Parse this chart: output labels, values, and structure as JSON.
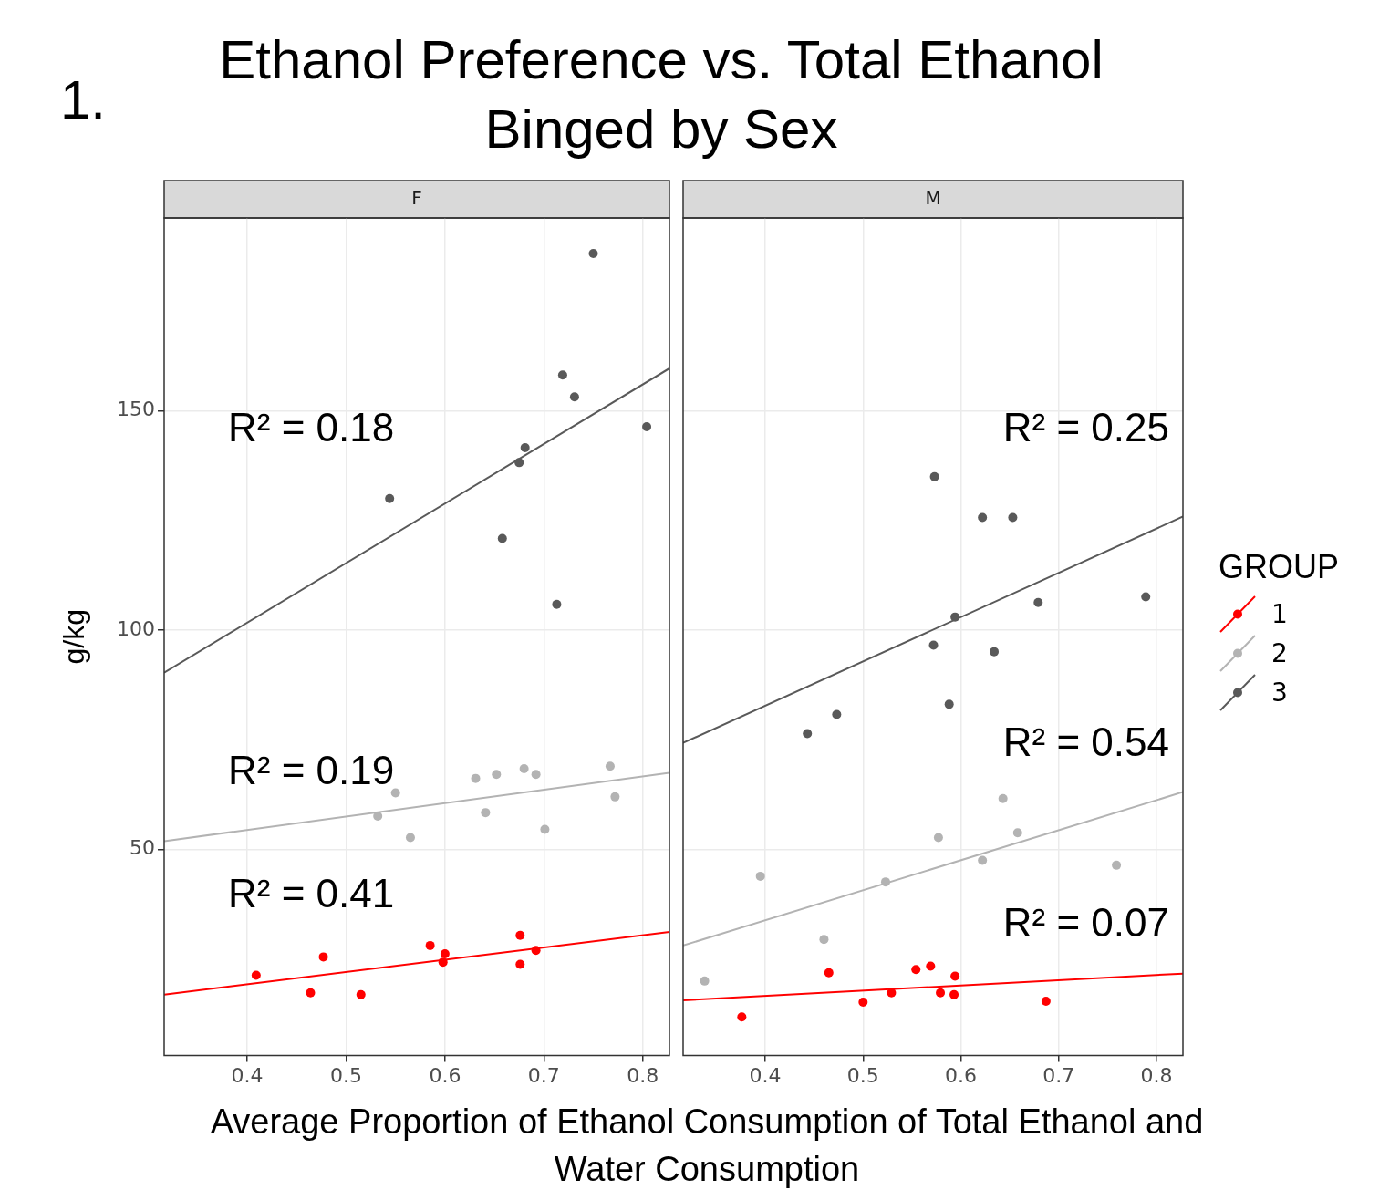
{
  "chart_data": [
    {
      "type": "scatter",
      "title": "Ethanol Preference vs. Total Ethanol Binged by Sex",
      "subtitle": "F",
      "xlabel": "Average Proportion of Ethanol Consumption of Total Ethanol and Water Consumption",
      "ylabel": "g/kg",
      "xlim": [
        0.316,
        0.827
      ],
      "xticks": [
        0.4,
        0.5,
        0.6,
        0.7,
        0.8
      ],
      "ylim": [
        3,
        194
      ],
      "yticks": [
        50,
        100,
        150
      ],
      "grid": true,
      "marker": "circle",
      "annotations": [
        "1.",
        "R² = 0.18",
        "R² = 0.19",
        "R² = 0.41"
      ],
      "series": [
        {
          "color": "#ff0000",
          "x": [
            0.409,
            0.464,
            0.477,
            0.515,
            0.585,
            0.6,
            0.598,
            0.676,
            0.676,
            0.692
          ],
          "values": [
            21.3,
            17.3,
            25.5,
            16.9,
            28.1,
            26.2,
            24.3,
            30.4,
            23.8,
            27
          ]
        },
        {
          "color": "#b3b3b3",
          "x": [
            0.55,
            0.532,
            0.565,
            0.631,
            0.652,
            0.641,
            0.68,
            0.692,
            0.701,
            0.767,
            0.772
          ],
          "values": [
            62.9,
            57.6,
            52.7,
            66.2,
            67.1,
            58.4,
            68.4,
            67.1,
            54.6,
            69,
            62
          ]
        },
        {
          "color": "#595959",
          "x": [
            0.75,
            0.719,
            0.731,
            0.804,
            0.681,
            0.675,
            0.544,
            0.658,
            0.713
          ],
          "values": [
            185.9,
            158.2,
            153.2,
            146.4,
            141.6,
            138.2,
            130,
            120.9,
            105.9
          ]
        },
        {
          "type": "line",
          "marker": "none",
          "color": "#ff0000",
          "x": [
            0.316,
            0.827
          ],
          "values": [
            16.9,
            31.2
          ]
        },
        {
          "type": "line",
          "marker": "none",
          "color": "#b3b3b3",
          "x": [
            0.316,
            0.827
          ],
          "values": [
            51.9,
            67.5
          ]
        },
        {
          "type": "line",
          "marker": "none",
          "color": "#595959",
          "x": [
            0.316,
            0.827
          ],
          "values": [
            90.3,
            159.7
          ]
        }
      ]
    },
    {
      "type": "scatter",
      "subtitle": "M",
      "xlim": [
        0.316,
        0.827
      ],
      "xticks": [
        0.4,
        0.5,
        0.6,
        0.7,
        0.8
      ],
      "ylim": [
        3,
        194
      ],
      "yticks": [
        50,
        100,
        150
      ],
      "tick_labels": "x",
      "grid": true,
      "marker": "circle",
      "legend": "right",
      "legend_title": "GROUP",
      "annotations": [
        "R² = 0.25",
        "R² = 0.54",
        "R² = 0.07"
      ],
      "series": [
        {
          "name": "1",
          "color": "#ff0000",
          "x": [
            0.376,
            0.465,
            0.5,
            0.529,
            0.554,
            0.569,
            0.579,
            0.593,
            0.594,
            0.687
          ],
          "values": [
            11.8,
            21.9,
            15.2,
            17.3,
            22.6,
            23.4,
            17.3,
            16.9,
            21.1,
            15.4
          ]
        },
        {
          "name": "2",
          "color": "#b3b3b3",
          "x": [
            0.643,
            0.658,
            0.577,
            0.622,
            0.759,
            0.395,
            0.523,
            0.46,
            0.338
          ],
          "values": [
            61.6,
            53.8,
            52.7,
            47.5,
            46.4,
            43.9,
            42.6,
            29.5,
            20
          ]
        },
        {
          "name": "3",
          "color": "#595959",
          "x": [
            0.573,
            0.622,
            0.653,
            0.789,
            0.679,
            0.594,
            0.572,
            0.634,
            0.588,
            0.473,
            0.443
          ],
          "values": [
            135,
            125.7,
            125.7,
            107.6,
            106.3,
            103,
            96.6,
            95.1,
            83.1,
            80.8,
            76.4
          ]
        },
        {
          "type": "line",
          "marker": "none",
          "color": "#ff0000",
          "x": [
            0.316,
            0.827
          ],
          "values": [
            15.6,
            21.7
          ]
        },
        {
          "type": "line",
          "marker": "none",
          "color": "#b3b3b3",
          "x": [
            0.316,
            0.827
          ],
          "values": [
            28.1,
            63.1
          ]
        },
        {
          "type": "line",
          "marker": "none",
          "color": "#595959",
          "x": [
            0.316,
            0.827
          ],
          "values": [
            74.3,
            125.9
          ]
        }
      ]
    }
  ]
}
